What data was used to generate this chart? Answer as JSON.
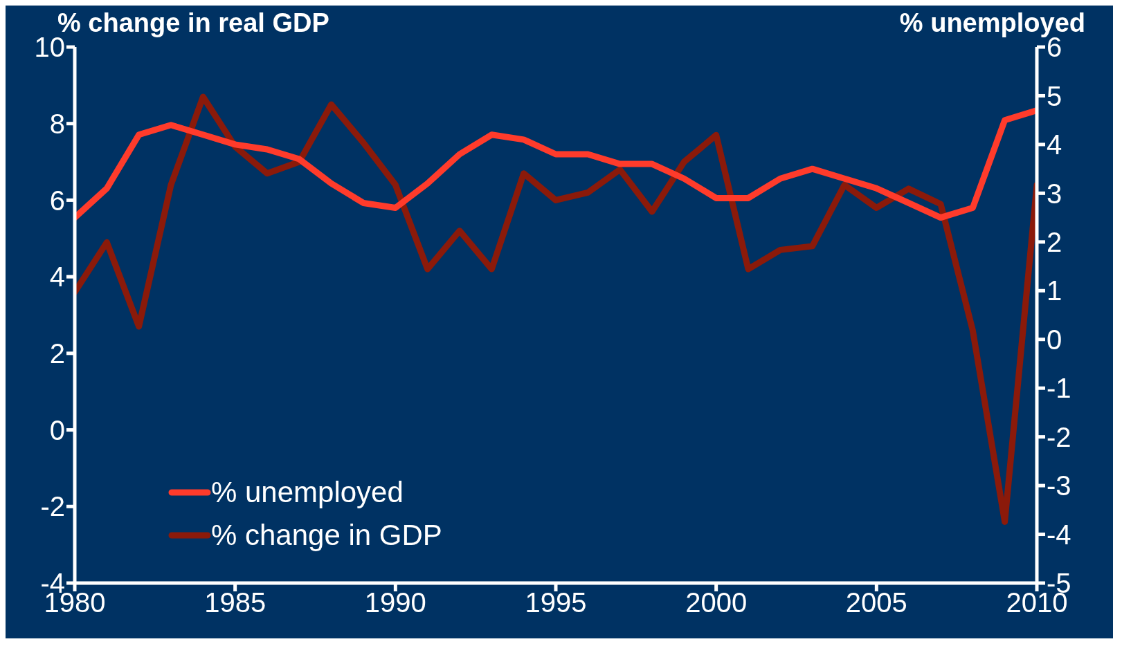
{
  "chart_data": {
    "type": "line",
    "ylabel": "% change in real GDP",
    "y2label": "% unemployed",
    "x": [
      1980,
      1981,
      1982,
      1983,
      1984,
      1985,
      1986,
      1987,
      1988,
      1989,
      1990,
      1991,
      1992,
      1993,
      1994,
      1995,
      1996,
      1997,
      1998,
      1999,
      2000,
      2001,
      2002,
      2003,
      2004,
      2005,
      2006,
      2007,
      2008,
      2009,
      2010
    ],
    "series": [
      {
        "name": "% unemployed",
        "color": "#ff3b2b",
        "axis": "y2",
        "values": [
          2.5,
          3.1,
          4.2,
          4.4,
          4.2,
          4.0,
          3.9,
          3.7,
          3.2,
          2.8,
          2.7,
          3.2,
          3.8,
          4.2,
          4.1,
          3.8,
          3.8,
          3.6,
          3.6,
          3.3,
          2.9,
          2.9,
          3.3,
          3.5,
          3.3,
          3.1,
          2.8,
          2.5,
          2.7,
          4.5,
          4.7
        ]
      },
      {
        "name": "% change in GDP",
        "color": "#8b1a0a",
        "axis": "y",
        "values": [
          3.6,
          4.9,
          2.7,
          6.4,
          8.7,
          7.4,
          6.7,
          7.0,
          8.5,
          7.5,
          6.4,
          4.2,
          5.2,
          4.2,
          6.7,
          6.0,
          6.2,
          6.8,
          5.7,
          7.0,
          7.7,
          4.2,
          4.7,
          4.8,
          6.4,
          5.8,
          6.3,
          5.9,
          2.6,
          -2.4,
          6.4
        ]
      }
    ],
    "xlim": [
      1980,
      2010
    ],
    "xticks": [
      1980,
      1985,
      1990,
      1995,
      2000,
      2005,
      2010
    ],
    "ylim": [
      -4,
      10
    ],
    "yticks": [
      -4,
      -2,
      0,
      2,
      4,
      6,
      8,
      10
    ],
    "y2lim": [
      -5,
      6
    ],
    "y2ticks": [
      -5,
      -4,
      -3,
      -2,
      -1,
      0,
      1,
      2,
      3,
      4,
      5,
      6
    ],
    "grid": false,
    "legend": "bottom left",
    "line_style": "solid",
    "marker": "none"
  }
}
